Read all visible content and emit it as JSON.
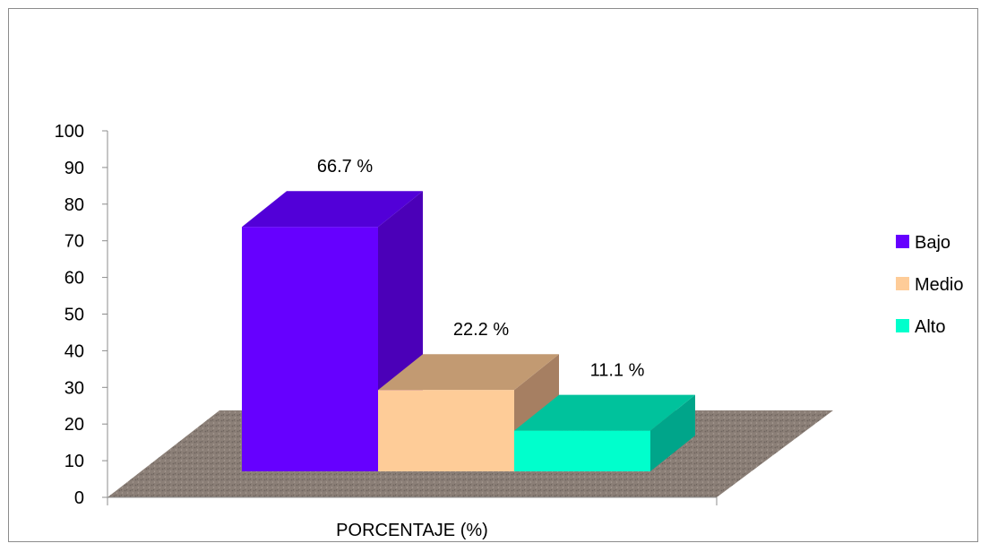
{
  "chart_data": {
    "type": "bar",
    "style": "3d-clustered-column",
    "categories": [
      "PORCENTAJE (%)"
    ],
    "series": [
      {
        "name": "Bajo",
        "values": [
          66.7
        ],
        "label": "66.7 %",
        "color": "#6600ff",
        "side": "#4b00b8",
        "top": "#5200d8"
      },
      {
        "name": "Medio",
        "values": [
          22.2
        ],
        "label": "22.2 %",
        "color": "#fecc98",
        "side": "#a67f62",
        "top": "#c29a72"
      },
      {
        "name": "Alto",
        "values": [
          11.1
        ],
        "label": "11.1 %",
        "color": "#00ffcc",
        "side": "#00a58a",
        "top": "#00c29c"
      }
    ],
    "xlabel": "PORCENTAJE (%)",
    "ylim": [
      0,
      100
    ],
    "yticks": [
      0,
      10,
      20,
      30,
      40,
      50,
      60,
      70,
      80,
      90,
      100
    ],
    "legend": {
      "position": "right",
      "entries": [
        "Bajo",
        "Medio",
        "Alto"
      ]
    },
    "floor_color": "#8b7f77",
    "grid": false
  }
}
